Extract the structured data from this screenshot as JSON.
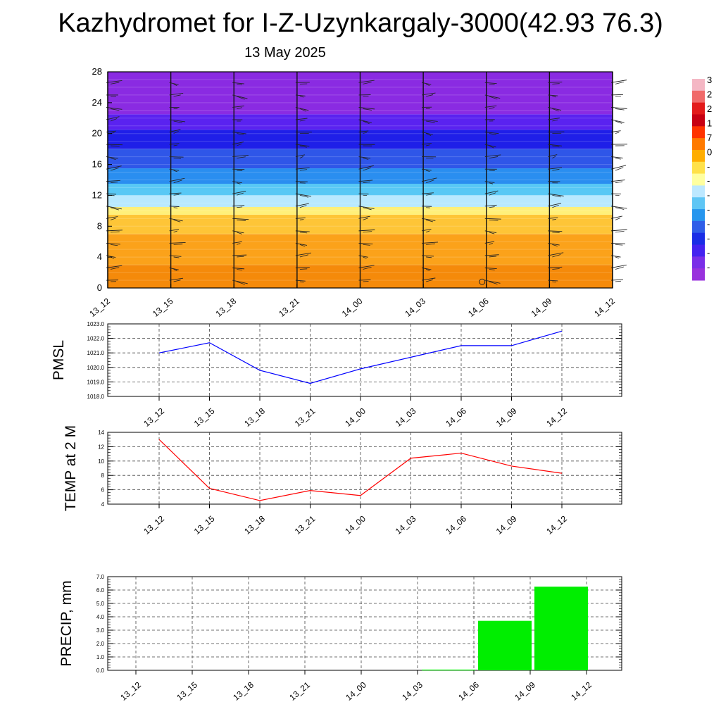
{
  "header": {
    "title": "Kazhydromet for I-Z-Uzynkargaly-3000(42.93 76.3)",
    "subtitle": "13 May 2025"
  },
  "colors": {
    "pmsl_line": "#0000ff",
    "temp_line": "#ff0000",
    "precip_bar": "#00ee00",
    "grid": "#555555"
  },
  "chart_data": [
    {
      "id": "cross-section",
      "type": "heatmap",
      "title": "",
      "xlabel": "",
      "ylabel": "",
      "x": [
        "13_12",
        "13_15",
        "13_18",
        "13_21",
        "14_00",
        "14_03",
        "14_06",
        "14_09",
        "14_12"
      ],
      "ylim": [
        0,
        28
      ],
      "yticks": [
        "0",
        "4",
        "8",
        "12",
        "16",
        "20",
        "24",
        "28"
      ],
      "colorbar": "violet-blue-cyan-yellow-orange-red",
      "colorbar_labels": [
        "3",
        "2",
        "2",
        "1",
        "7",
        "0",
        "-",
        "-",
        "-",
        "-",
        "-",
        "-",
        "-",
        "-"
      ],
      "bands": [
        {
          "from": 0,
          "to": 3,
          "color": "#f58a0a"
        },
        {
          "from": 3,
          "to": 7,
          "color": "#fba21a"
        },
        {
          "from": 7,
          "to": 9.5,
          "color": "#fec537"
        },
        {
          "from": 9.5,
          "to": 10.5,
          "color": "#fff07a"
        },
        {
          "from": 10.5,
          "to": 12,
          "color": "#b8e9ff"
        },
        {
          "from": 12,
          "to": 13.5,
          "color": "#58c8f5"
        },
        {
          "from": 13.5,
          "to": 15.5,
          "color": "#2a8ef0"
        },
        {
          "from": 15.5,
          "to": 18,
          "color": "#2f56e8"
        },
        {
          "from": 18,
          "to": 20.5,
          "color": "#1f1fe8"
        },
        {
          "from": 20.5,
          "to": 22.5,
          "color": "#5a22f0"
        },
        {
          "from": 22.5,
          "to": 28,
          "color": "#8a2be2"
        }
      ],
      "wind_barbs": true
    },
    {
      "id": "pmsl",
      "type": "line",
      "ylabel": "PMSL",
      "x": [
        "13_12",
        "13_15",
        "13_18",
        "13_21",
        "14_00",
        "14_03",
        "14_06",
        "14_09",
        "14_12"
      ],
      "series": [
        {
          "values": [
            1021.0,
            1021.7,
            1019.8,
            1018.9,
            1019.9,
            1020.7,
            1021.5,
            1021.5,
            1022.5
          ]
        }
      ],
      "ylim": [
        1018.0,
        1023.0
      ],
      "yticks": [
        "1018.0",
        "1019.0",
        "1020.0",
        "1021.0",
        "1022.0",
        "1023.0"
      ],
      "grid": true
    },
    {
      "id": "temp",
      "type": "line",
      "ylabel": "TEMP at 2 M",
      "x": [
        "13_12",
        "13_15",
        "13_18",
        "13_21",
        "14_00",
        "14_03",
        "14_06",
        "14_09",
        "14_12"
      ],
      "series": [
        {
          "values": [
            13.0,
            6.2,
            4.5,
            5.9,
            5.2,
            10.4,
            11.1,
            9.3,
            8.3
          ]
        }
      ],
      "ylim": [
        4,
        14
      ],
      "yticks": [
        "4",
        "6",
        "8",
        "10",
        "12",
        "14"
      ],
      "grid": true
    },
    {
      "id": "precip",
      "type": "bar",
      "ylabel": "PRECIP, mm",
      "categories": [
        "13_12",
        "13_15",
        "13_18",
        "13_21",
        "14_00",
        "14_03",
        "14_06",
        "14_09",
        "14_12"
      ],
      "values": [
        0,
        0,
        0,
        0,
        0,
        0,
        0.05,
        3.7,
        6.25
      ],
      "ylim": [
        0,
        7.0
      ],
      "yticks": [
        "0.0",
        "1.0",
        "2.0",
        "3.0",
        "4.0",
        "5.0",
        "6.0",
        "7.0"
      ],
      "grid": true
    }
  ]
}
